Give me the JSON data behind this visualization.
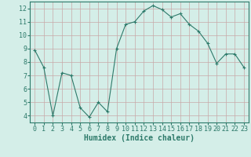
{
  "x": [
    0,
    1,
    2,
    3,
    4,
    5,
    6,
    7,
    8,
    9,
    10,
    11,
    12,
    13,
    14,
    15,
    16,
    17,
    18,
    19,
    20,
    21,
    22,
    23
  ],
  "y": [
    8.9,
    7.6,
    4.0,
    7.2,
    7.0,
    4.6,
    3.9,
    5.0,
    4.3,
    9.0,
    10.8,
    11.0,
    11.8,
    12.2,
    11.9,
    11.35,
    11.6,
    10.8,
    10.3,
    9.4,
    7.9,
    8.6,
    8.6,
    7.6
  ],
  "line_color": "#2d7a6a",
  "marker": "+",
  "marker_size": 3,
  "xlabel": "Humidex (Indice chaleur)",
  "bg_color": "#d4eee8",
  "grid_color": "#c8a8a8",
  "ylim": [
    3.5,
    12.5
  ],
  "xlim": [
    -0.5,
    23.5
  ],
  "yticks": [
    4,
    5,
    6,
    7,
    8,
    9,
    10,
    11,
    12
  ],
  "xticks": [
    0,
    1,
    2,
    3,
    4,
    5,
    6,
    7,
    8,
    9,
    10,
    11,
    12,
    13,
    14,
    15,
    16,
    17,
    18,
    19,
    20,
    21,
    22,
    23
  ],
  "tick_color": "#2d7a6a",
  "label_fontsize": 6,
  "xlabel_fontsize": 7
}
